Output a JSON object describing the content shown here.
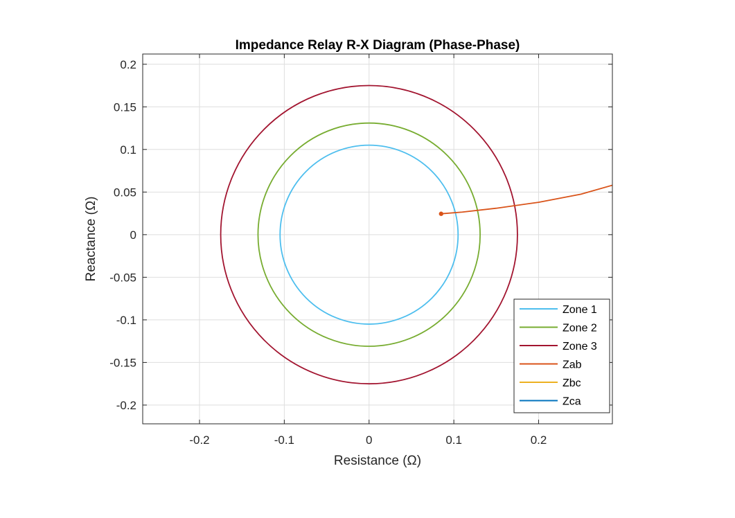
{
  "chart_data": {
    "type": "line",
    "title": "Impedance Relay R-X Diagram (Phase-Phase)",
    "xlabel": "Resistance (Ω)",
    "ylabel": "Reactance (Ω)",
    "xlim": [
      -0.267,
      0.287
    ],
    "ylim": [
      -0.222,
      0.212
    ],
    "xticks": [
      -0.2,
      -0.1,
      0,
      0.1,
      0.2
    ],
    "xtick_labels": [
      "-0.2",
      "-0.1",
      "0",
      "0.1",
      "0.2"
    ],
    "yticks": [
      -0.2,
      -0.15,
      -0.1,
      -0.05,
      0,
      0.05,
      0.1,
      0.15,
      0.2
    ],
    "ytick_labels": [
      "-0.2",
      "-0.15",
      "-0.1",
      "-0.05",
      "0",
      "0.05",
      "0.1",
      "0.15",
      "0.2"
    ],
    "grid": true,
    "legend_position": "bottom-right",
    "series": [
      {
        "name": "Zone 1",
        "shape": "circle",
        "center": [
          0,
          0
        ],
        "radius": 0.105,
        "color": "#4DBEEE"
      },
      {
        "name": "Zone 2",
        "shape": "circle",
        "center": [
          0,
          0
        ],
        "radius": 0.131,
        "color": "#77AC30"
      },
      {
        "name": "Zone 3",
        "shape": "circle",
        "center": [
          0,
          0
        ],
        "radius": 0.175,
        "color": "#A2142F"
      },
      {
        "name": "Zab",
        "shape": "trajectory",
        "color": "#D95319",
        "x": [
          0.085,
          0.11,
          0.15,
          0.2,
          0.25,
          0.287
        ],
        "y": [
          0.0245,
          0.0265,
          0.031,
          0.038,
          0.0475,
          0.058
        ],
        "start_marker": true
      },
      {
        "name": "Zbc",
        "shape": "trajectory",
        "color": "#EDB120",
        "x": [],
        "y": []
      },
      {
        "name": "Zca",
        "shape": "trajectory",
        "color": "#0072BD",
        "x": [],
        "y": []
      }
    ]
  }
}
